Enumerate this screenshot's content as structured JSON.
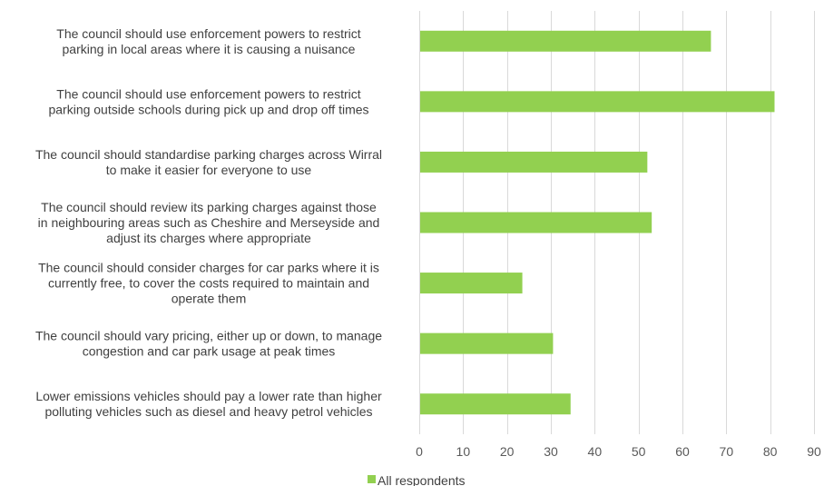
{
  "chart_data": {
    "type": "bar",
    "orientation": "horizontal",
    "categories": [
      [
        "The council should use enforcement powers to restrict",
        "parking in local areas where it is causing a nuisance"
      ],
      [
        "The council should use enforcement powers to restrict",
        "parking outside schools during pick up and drop off times"
      ],
      [
        "The council should standardise parking charges across Wirral",
        "to make it easier for everyone to use"
      ],
      [
        "The council should review its parking charges against those",
        "in neighbouring areas such as Cheshire and Merseyside and",
        "adjust its charges where appropriate"
      ],
      [
        "The council should consider charges for car parks where it is",
        "currently free, to cover the costs required to maintain and",
        "operate them"
      ],
      [
        "The council should vary pricing, either up or down, to manage",
        "congestion and car park usage at peak times"
      ],
      [
        "Lower emissions vehicles should pay a lower rate than higher",
        "polluting vehicles such as diesel and heavy petrol vehicles"
      ]
    ],
    "series": [
      {
        "name": "All respondents",
        "values": [
          66.5,
          81,
          52,
          53,
          23.5,
          30.5,
          34.5
        ],
        "color": "#92d050"
      }
    ],
    "xlim": [
      0,
      90
    ],
    "xticks": [
      0,
      10,
      20,
      30,
      40,
      50,
      60,
      70,
      80,
      90
    ],
    "grid": true,
    "legend_position": "bottom"
  }
}
